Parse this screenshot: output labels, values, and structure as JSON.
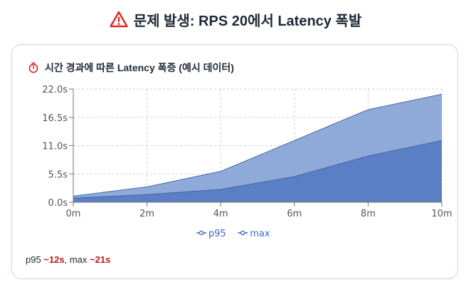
{
  "header": {
    "title": "문제 발생: RPS 20에서 Latency 폭발"
  },
  "card": {
    "title": "시간 경과에 따른 Latency 폭증 (예시 데이터)"
  },
  "chart_data": {
    "type": "area",
    "x": [
      "0m",
      "2m",
      "4m",
      "6m",
      "8m",
      "10m"
    ],
    "x_values": [
      0,
      2,
      4,
      6,
      8,
      10
    ],
    "yticks": [
      "0.0s",
      "5.5s",
      "11.0s",
      "16.5s",
      "22.0s"
    ],
    "ylim": [
      0,
      22
    ],
    "grid": true,
    "legend_placement": "bottom-center",
    "series": [
      {
        "name": "p95",
        "values": [
          0.8,
          1.5,
          2.5,
          5.0,
          9.0,
          12.0
        ],
        "color": "#5b7fc4"
      },
      {
        "name": "max",
        "values": [
          1.2,
          3.0,
          6.0,
          12.0,
          18.0,
          21.0
        ],
        "color": "#8fa9d8"
      }
    ]
  },
  "note": {
    "p95_label": "p95 ",
    "p95_value": "~12s",
    "separator": ", max ",
    "max_value": "~21s"
  }
}
